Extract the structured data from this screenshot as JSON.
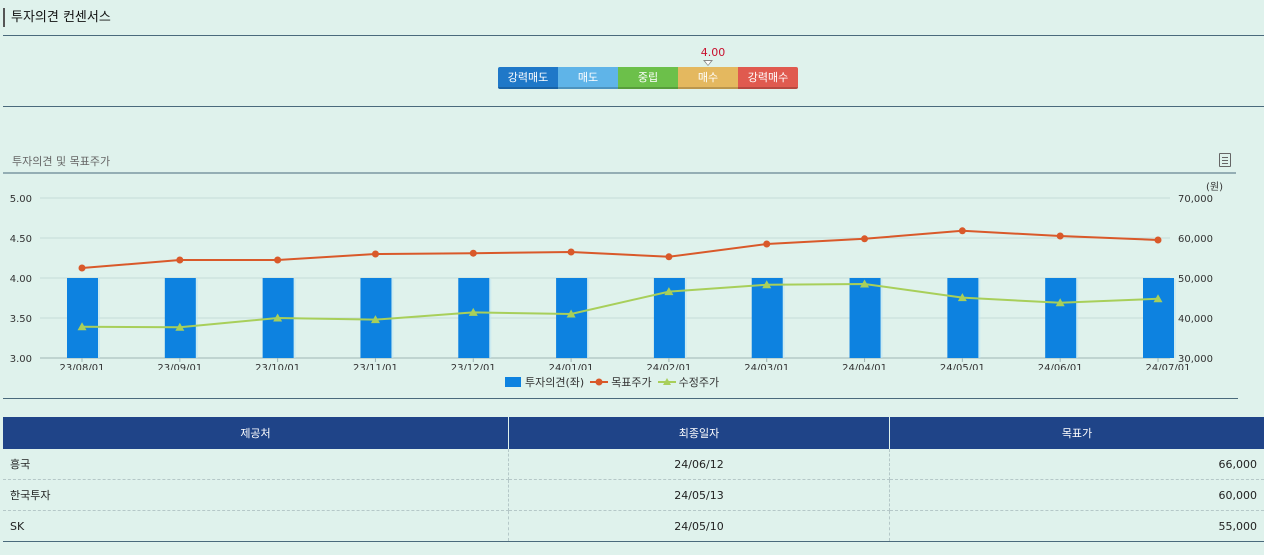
{
  "page": {
    "title": "투자의견 컨센서스",
    "chart_title": "투자의견 및 목표주가",
    "icons": {
      "chart_menu": "document-list-icon"
    }
  },
  "opinion_scale": {
    "score": "4.00",
    "score_value": 4.0,
    "labels": [
      "강력매도",
      "매도",
      "중립",
      "매수",
      "강력매수"
    ],
    "colors": [
      "#1f78c8",
      "#5fb4e8",
      "#6cc04a",
      "#e4b85f",
      "#e05a4f"
    ]
  },
  "chart_data": {
    "type": "bar",
    "x_ticks": [
      "23/08/01",
      "23/09/01",
      "23/10/01",
      "23/11/01",
      "23/12/01",
      "24/01/01",
      "24/02/01",
      "24/03/01",
      "24/04/01",
      "24/05/01",
      "24/06/01",
      "24/07/01"
    ],
    "y_left": {
      "lim": [
        3.0,
        5.0
      ],
      "ticks": [
        "5.00",
        "4.50",
        "4.00",
        "3.50",
        "3.00"
      ]
    },
    "y_right": {
      "lim": [
        30000,
        70000
      ],
      "ticks": [
        "70,000",
        "60,000",
        "50,000",
        "40,000",
        "30,000"
      ],
      "unit": "(원)"
    },
    "series": [
      {
        "name": "투자의견(좌)",
        "type": "bar",
        "color": "#0d82e0",
        "values": [
          4.0,
          4.0,
          4.0,
          4.0,
          4.0,
          4.0,
          4.0,
          4.0,
          4.0,
          4.0,
          4.0,
          4.0
        ]
      },
      {
        "name": "목표주가",
        "type": "line",
        "axis": "right",
        "color": "#d9592a",
        "marker": "circle",
        "values": [
          52500,
          54500,
          54500,
          56000,
          56200,
          56500,
          55300,
          58500,
          59800,
          61800,
          60500,
          59500
        ]
      },
      {
        "name": "수정주가",
        "type": "line",
        "axis": "right",
        "color": "#a8cf5a",
        "marker": "triangle",
        "values": [
          37800,
          37700,
          40000,
          39600,
          41400,
          41000,
          46600,
          48300,
          48500,
          45100,
          43800,
          44800
        ]
      }
    ],
    "legend_position": "bottom",
    "grid": true
  },
  "table": {
    "headers": [
      "제공처",
      "최종일자",
      "목표가"
    ],
    "rows": [
      [
        "흥국",
        "24/06/12",
        "66,000"
      ],
      [
        "한국투자",
        "24/05/13",
        "60,000"
      ],
      [
        "SK",
        "24/05/10",
        "55,000"
      ]
    ]
  }
}
